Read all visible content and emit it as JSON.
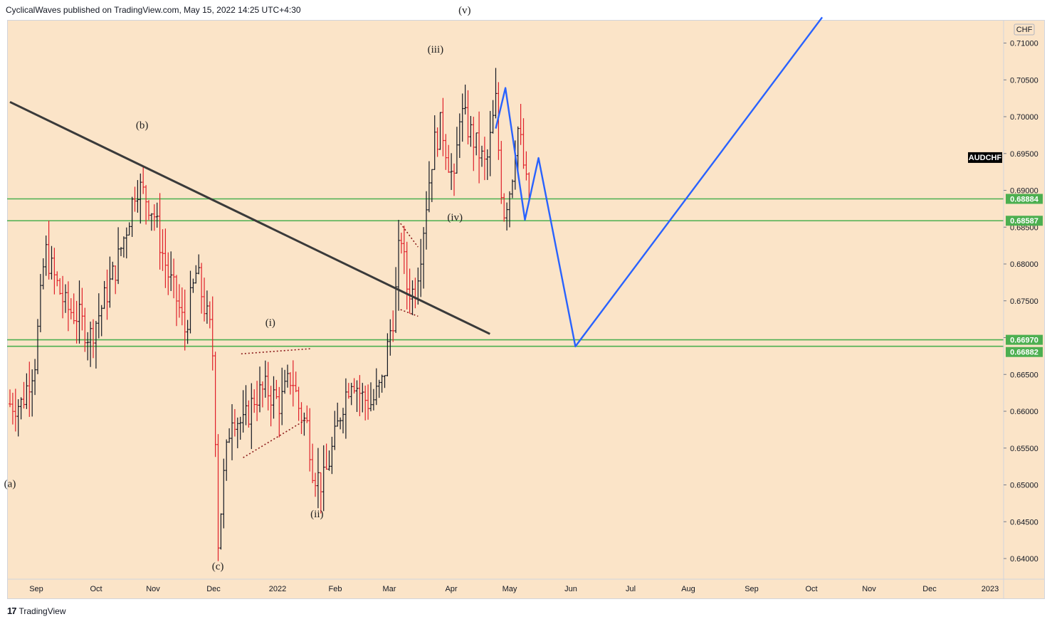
{
  "header": {
    "text": "CyclicalWaves published on TradingView.com, May 15, 2022 14:25 UTC+4:30"
  },
  "footer": {
    "logo": "17",
    "brand": "TradingView"
  },
  "symbol": "AUDCHF",
  "currency": "CHF",
  "colors": {
    "background": "#fbe4c8",
    "up_bar": "#131722",
    "down_bar": "#e0202a",
    "support_line": "#4caf50",
    "trendline": "#3a3a3a",
    "projection": "#2962ff",
    "triangle": "#8b1a1a"
  },
  "chart_data": {
    "type": "bar",
    "y_axis": {
      "range": [
        0.636,
        0.714
      ],
      "ticks": [
        "0.71000",
        "0.70500",
        "0.70000",
        "0.69500",
        "0.69000",
        "0.68500",
        "0.68000",
        "0.67500",
        "0.67000",
        "0.66500",
        "0.66000",
        "0.65500",
        "0.65000",
        "0.64500",
        "0.64000"
      ]
    },
    "x_axis": {
      "ticks": [
        "Sep",
        "Oct",
        "Nov",
        "Dec",
        "2022",
        "Feb",
        "Mar",
        "Apr",
        "May",
        "Jun",
        "Jul",
        "Aug",
        "Sep",
        "Oct",
        "Nov",
        "Dec",
        "2023"
      ]
    },
    "horizontal_levels": [
      {
        "value": 0.68884,
        "label": "0.68884"
      },
      {
        "value": 0.68587,
        "label": "0.68587"
      },
      {
        "value": 0.6697,
        "label": "0.66970"
      },
      {
        "value": 0.66882,
        "label": "0.66882"
      }
    ],
    "symbol_tag": {
      "label": "AUDCHF",
      "value": 0.6945
    },
    "wave_labels": [
      {
        "text": "(a)",
        "date": "2021-08-18",
        "price": 0.6497
      },
      {
        "text": "(b)",
        "date": "2021-10-25",
        "price": 0.6984
      },
      {
        "text": "(c)",
        "date": "2021-12-03",
        "price": 0.6385
      },
      {
        "text": "(i)",
        "date": "2021-12-30",
        "price": 0.6716
      },
      {
        "text": "(ii)",
        "date": "2022-01-23",
        "price": 0.6456
      },
      {
        "text": "(iii)",
        "date": "2022-03-25",
        "price": 0.7087
      },
      {
        "text": "(iv)",
        "date": "2022-04-04",
        "price": 0.6859
      },
      {
        "text": "(v)",
        "date": "2022-04-09",
        "price": 0.714
      }
    ],
    "trendline": {
      "from": {
        "date": "2021-08-18",
        "price": 0.702
      },
      "to": {
        "date": "2022-04-22",
        "price": 0.6705
      }
    },
    "triangles": [
      {
        "upper": [
          {
            "date": "2021-12-15",
            "price": 0.6678
          },
          {
            "date": "2022-01-20",
            "price": 0.6685
          }
        ],
        "lower": [
          {
            "date": "2021-12-16",
            "price": 0.6537
          },
          {
            "date": "2022-01-17",
            "price": 0.6588
          }
        ]
      },
      {
        "upper": [
          {
            "date": "2022-03-07",
            "price": 0.6855
          },
          {
            "date": "2022-03-16",
            "price": 0.6823
          }
        ],
        "lower": [
          {
            "date": "2022-03-07",
            "price": 0.6738
          },
          {
            "date": "2022-03-16",
            "price": 0.6729
          }
        ]
      }
    ],
    "projection": [
      {
        "date": "2022-04-25",
        "price": 0.6984
      },
      {
        "date": "2022-04-30",
        "price": 0.7039
      },
      {
        "date": "2022-05-10",
        "price": 0.686
      },
      {
        "date": "2022-05-17",
        "price": 0.6944
      },
      {
        "date": "2022-06-05",
        "price": 0.6688
      },
      {
        "date": "2022-10-10",
        "price": 0.7135
      }
    ],
    "ohlc_anchors": [
      [
        "2021-08-18",
        0.661
      ],
      [
        "2021-08-24",
        0.661
      ],
      [
        "2021-08-31",
        0.667
      ],
      [
        "2021-09-05",
        0.682
      ],
      [
        "2021-09-10",
        0.678
      ],
      [
        "2021-09-16",
        0.674
      ],
      [
        "2021-09-22",
        0.673
      ],
      [
        "2021-09-28",
        0.67
      ],
      [
        "2021-10-04",
        0.674
      ],
      [
        "2021-10-08",
        0.677
      ],
      [
        "2021-10-12",
        0.68
      ],
      [
        "2021-10-18",
        0.686
      ],
      [
        "2021-10-22",
        0.691
      ],
      [
        "2021-10-27",
        0.689
      ],
      [
        "2021-10-31",
        0.687
      ],
      [
        "2021-11-04",
        0.682
      ],
      [
        "2021-11-08",
        0.678
      ],
      [
        "2021-11-12",
        0.675
      ],
      [
        "2021-11-16",
        0.671
      ],
      [
        "2021-11-22",
        0.679
      ],
      [
        "2021-11-28",
        0.672
      ],
      [
        "2021-11-30",
        0.67
      ],
      [
        "2021-12-02",
        0.655
      ],
      [
        "2021-12-03",
        0.642
      ],
      [
        "2021-12-06",
        0.651
      ],
      [
        "2021-12-10",
        0.66
      ],
      [
        "2021-12-16",
        0.658
      ],
      [
        "2021-12-22",
        0.662
      ],
      [
        "2021-12-28",
        0.663
      ],
      [
        "2022-01-04",
        0.661
      ],
      [
        "2022-01-10",
        0.665
      ],
      [
        "2022-01-14",
        0.66
      ],
      [
        "2022-01-18",
        0.658
      ],
      [
        "2022-01-21",
        0.652
      ],
      [
        "2022-01-26",
        0.65
      ],
      [
        "2022-02-01",
        0.656
      ],
      [
        "2022-02-05",
        0.661
      ],
      [
        "2022-02-10",
        0.665
      ],
      [
        "2022-02-15",
        0.662
      ],
      [
        "2022-02-20",
        0.661
      ],
      [
        "2022-02-26",
        0.664
      ],
      [
        "2022-03-01",
        0.67
      ],
      [
        "2022-03-04",
        0.674
      ],
      [
        "2022-03-07",
        0.685
      ],
      [
        "2022-03-10",
        0.677
      ],
      [
        "2022-03-14",
        0.676
      ],
      [
        "2022-03-17",
        0.681
      ],
      [
        "2022-03-21",
        0.69
      ],
      [
        "2022-03-24",
        0.696
      ],
      [
        "2022-03-28",
        0.699
      ],
      [
        "2022-03-31",
        0.695
      ],
      [
        "2022-04-04",
        0.69
      ],
      [
        "2022-04-06",
        0.701
      ],
      [
        "2022-04-10",
        0.699
      ],
      [
        "2022-04-15",
        0.696
      ],
      [
        "2022-04-20",
        0.693
      ],
      [
        "2022-04-25",
        0.702
      ],
      [
        "2022-04-27",
        0.693
      ],
      [
        "2022-04-29",
        0.687
      ],
      [
        "2022-05-03",
        0.691
      ],
      [
        "2022-05-06",
        0.699
      ],
      [
        "2022-05-08",
        0.696
      ],
      [
        "2022-05-11",
        0.69
      ],
      [
        "2022-05-13",
        0.689
      ]
    ]
  }
}
